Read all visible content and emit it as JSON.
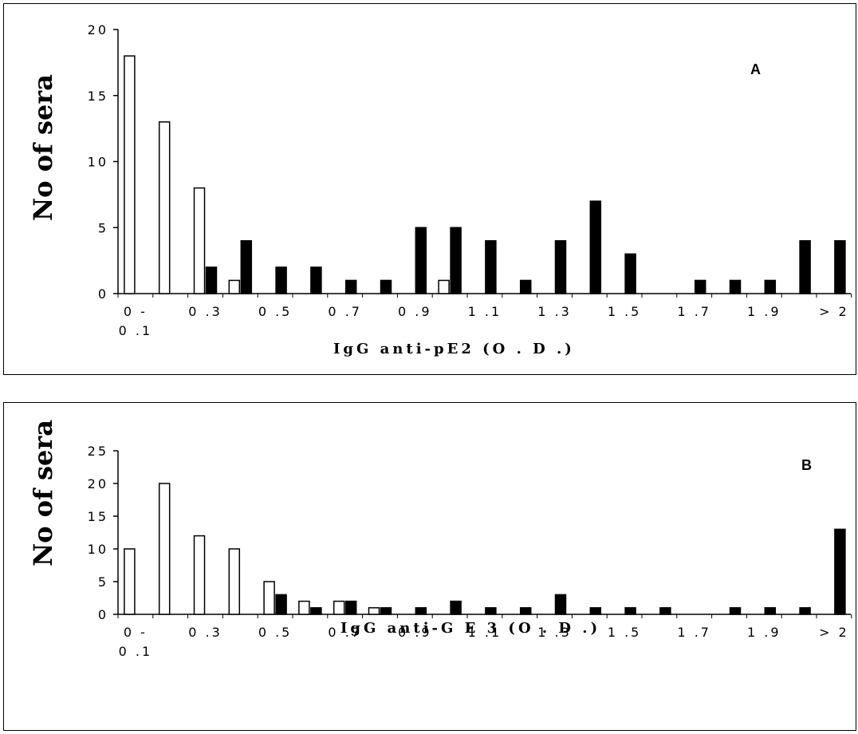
{
  "chart_data": [
    {
      "type": "bar",
      "panel_label": "A",
      "ylabel": "No of sera",
      "xlabel": "IgG  anti-pE2  (O . D .)",
      "ylim": [
        0,
        20
      ],
      "yticks": [
        "0",
        "5",
        "10",
        "15",
        "20"
      ],
      "xtick_labels": [
        "0 -",
        "0 .3",
        "0 .5",
        "0 .7",
        "0 .9",
        "1 .1",
        "1 .3",
        "1 .5",
        "1 .7",
        "1 .9",
        "> 2"
      ],
      "xtick_sublabel": "0 .1",
      "series": [
        {
          "fill": "white",
          "values": [
            18,
            13,
            8,
            1,
            0,
            0,
            0,
            0,
            0,
            1,
            0,
            0,
            0,
            0,
            0,
            0,
            0,
            0,
            0,
            0,
            0
          ]
        },
        {
          "fill": "black",
          "values": [
            0,
            0,
            2,
            4,
            2,
            2,
            1,
            1,
            5,
            5,
            4,
            1,
            4,
            7,
            3,
            0,
            1,
            1,
            1,
            4,
            4
          ]
        }
      ]
    },
    {
      "type": "bar",
      "panel_label": "B",
      "ylabel": "No of sera",
      "xlabel": "IgG  anti-G E 3  (O . D .)",
      "ylim": [
        0,
        25
      ],
      "yticks": [
        "0",
        "5",
        "10",
        "15",
        "20",
        "25"
      ],
      "xtick_labels": [
        "0 -",
        "0 .3",
        "0 .5",
        "0 .7",
        "0 .9",
        "1 .1",
        "1 .3",
        "1 .5",
        "1 .7",
        "1 .9",
        "> 2"
      ],
      "xtick_sublabel": "0 .1",
      "series": [
        {
          "fill": "white",
          "values": [
            10,
            20,
            12,
            10,
            5,
            2,
            2,
            1,
            0,
            0,
            0,
            0,
            0,
            0,
            0,
            0,
            0,
            0,
            0,
            0,
            0
          ]
        },
        {
          "fill": "black",
          "values": [
            0,
            0,
            0,
            0,
            3,
            1,
            2,
            1,
            1,
            2,
            1,
            1,
            3,
            1,
            1,
            1,
            0,
            1,
            1,
            1,
            13
          ]
        }
      ]
    }
  ]
}
